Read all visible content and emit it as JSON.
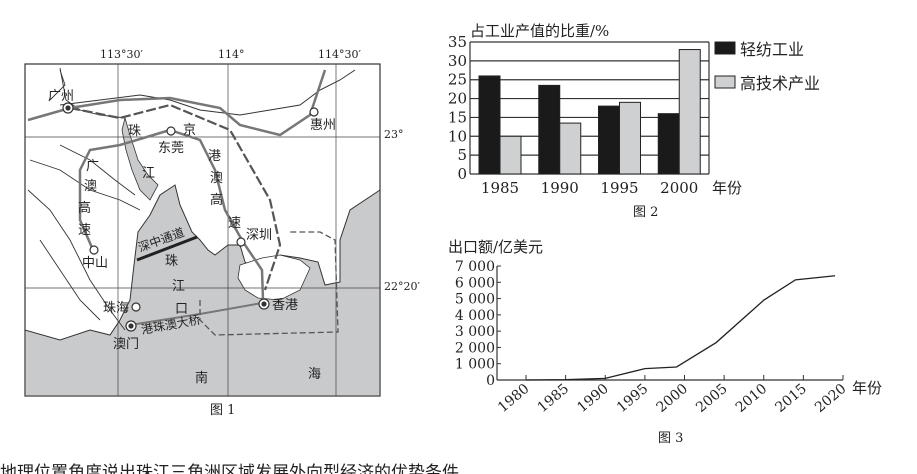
{
  "figure1": {
    "caption": "图 1",
    "lon_labels": [
      "113°30′",
      "114°",
      "114°30′"
    ],
    "lat_labels": [
      "23°",
      "22°20′"
    ],
    "cities": [
      "广州",
      "惠州",
      "东莞",
      "深圳",
      "中山",
      "珠海",
      "澳门",
      "香港"
    ],
    "water_labels": {
      "river": [
        "珠",
        "江"
      ],
      "estuary": [
        "珠",
        "江",
        "口"
      ],
      "sea": [
        "南",
        "海"
      ]
    },
    "routes": {
      "jinggangao": [
        "京",
        "港",
        "澳",
        "高",
        "速"
      ],
      "guangao": [
        "广",
        "澳",
        "高",
        "速"
      ],
      "shenzhong": "深中通道",
      "hzmb": "港珠澳大桥"
    },
    "colors": {
      "sea": "#c9cacc",
      "land": "#ffffff"
    }
  },
  "figure2": {
    "caption": "图 2",
    "chart_data": {
      "type": "bar",
      "title": "",
      "ylabel": "占工业产值的比重/%",
      "xlabel": "年份",
      "categories": [
        "1985",
        "1990",
        "1995",
        "2000"
      ],
      "series": [
        {
          "name": "轻纺工业",
          "values": [
            26,
            23.5,
            18,
            16
          ],
          "color": "#1a1a1a"
        },
        {
          "name": "高技术产业",
          "values": [
            10,
            13.5,
            19,
            33
          ],
          "color": "#cfd0d2"
        }
      ],
      "ylim": [
        0,
        35
      ],
      "yticks": [
        0,
        5,
        10,
        15,
        20,
        25,
        30,
        35
      ],
      "grid": true,
      "legend": "right"
    }
  },
  "figure3": {
    "caption": "图 3",
    "chart_data": {
      "type": "line",
      "ylabel": "出口额/亿美元",
      "xlabel": "年份",
      "x": [
        1980,
        1985,
        1990,
        1995,
        1999,
        2004,
        2010,
        2014,
        2019
      ],
      "values": [
        0,
        20,
        100,
        700,
        800,
        2300,
        4900,
        6150,
        6400
      ],
      "xticks": [
        "1980",
        "1985",
        "1990",
        "1995",
        "2000",
        "2005",
        "2010",
        "2015",
        "2020"
      ],
      "yticks": [
        "0",
        "1 000",
        "2 000",
        "3 000",
        "4 000",
        "5 000",
        "6 000",
        "7 000"
      ],
      "xlim": [
        1980,
        2020
      ],
      "ylim": [
        0,
        7000
      ],
      "grid": false
    }
  },
  "question_text": "地理位置角度说出珠江三角洲区域发展外向型经济的优势条件"
}
